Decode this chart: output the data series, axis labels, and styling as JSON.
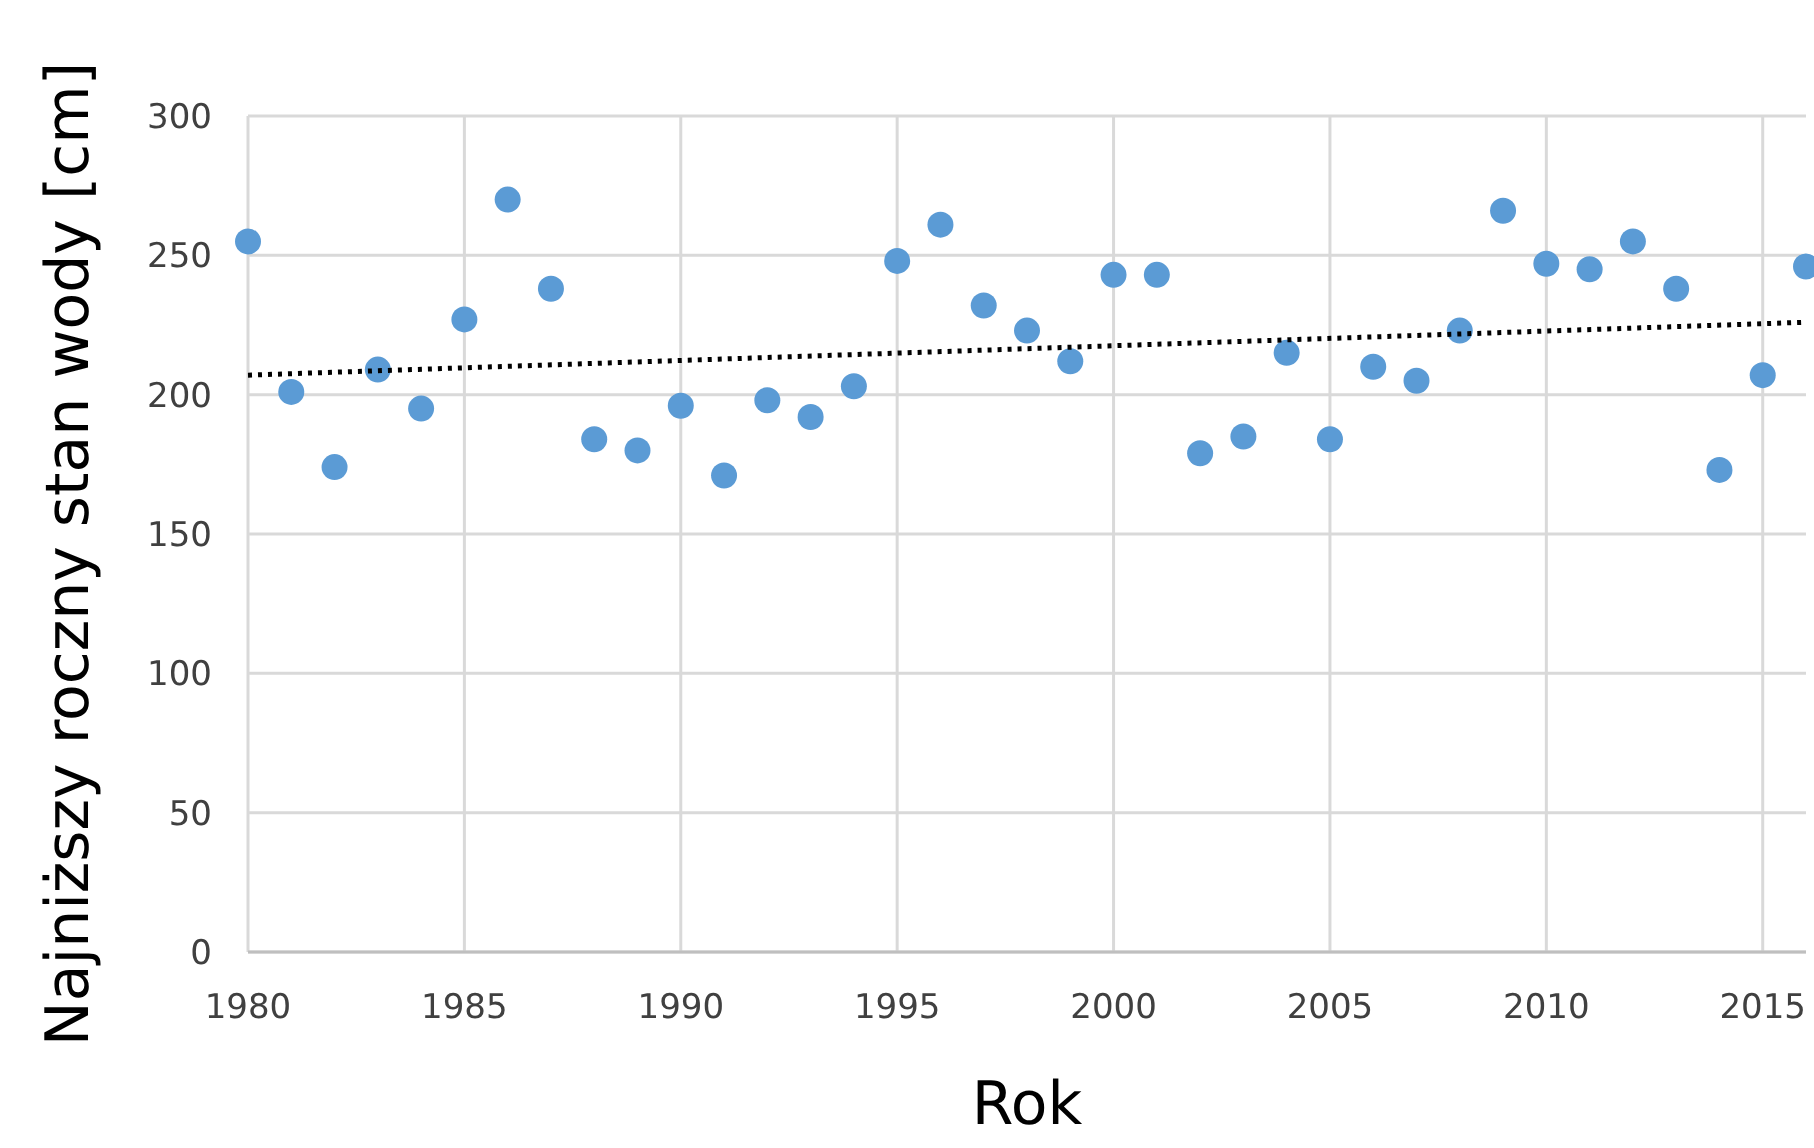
{
  "chart_data": {
    "type": "scatter",
    "xlabel": "Rok",
    "ylabel": "Najniższy roczny stan wody [cm]",
    "xlim": [
      1980,
      2016
    ],
    "xticks": [
      1980,
      1985,
      1990,
      1995,
      2000,
      2005,
      2010,
      2015
    ],
    "ylim": [
      0,
      300
    ],
    "yticks": [
      0,
      50,
      100,
      150,
      200,
      250,
      300
    ],
    "grid": true,
    "series": [
      {
        "color": "#5b9bd5",
        "marker": "circle",
        "x": [
          1980,
          1981,
          1982,
          1983,
          1984,
          1985,
          1986,
          1987,
          1988,
          1989,
          1990,
          1991,
          1992,
          1993,
          1994,
          1995,
          1996,
          1997,
          1998,
          1999,
          2000,
          2001,
          2002,
          2003,
          2004,
          2005,
          2006,
          2007,
          2008,
          2009,
          2010,
          2011,
          2012,
          2013,
          2014,
          2015,
          2016
        ],
        "values": [
          255,
          201,
          174,
          209,
          195,
          227,
          270,
          238,
          184,
          180,
          196,
          171,
          198,
          192,
          203,
          248,
          261,
          232,
          223,
          212,
          243,
          243,
          179,
          185,
          215,
          184,
          210,
          205,
          223,
          266,
          247,
          245,
          255,
          238,
          173,
          207,
          246
        ]
      },
      {
        "type": "line",
        "color": "#000000",
        "line_style": "dotted",
        "marker": "none",
        "x": [
          1980,
          2016
        ],
        "values": [
          207,
          226
        ]
      }
    ]
  }
}
